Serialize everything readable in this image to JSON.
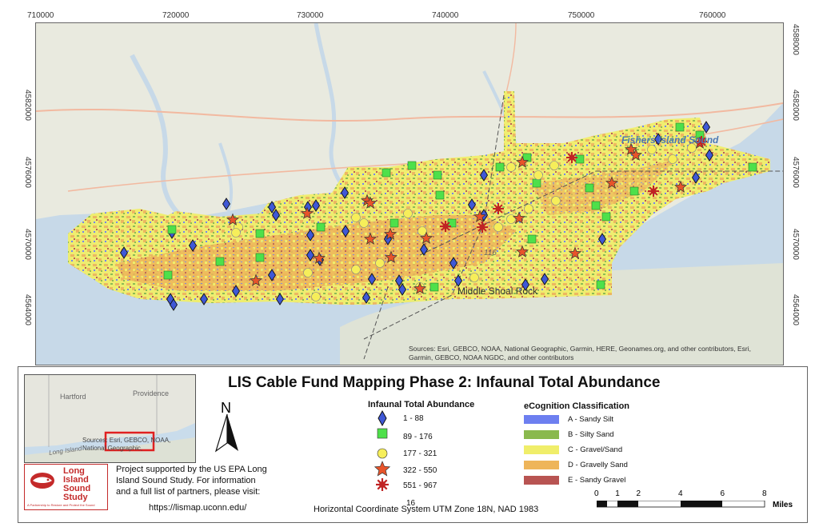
{
  "map": {
    "x_ticks": [
      "710000",
      "720000",
      "730000",
      "740000",
      "750000",
      "760000"
    ],
    "y_ticks_left": [
      "4582000",
      "4576000",
      "4570000",
      "4564000"
    ],
    "y_ticks_right": [
      "4588000",
      "4582000",
      "4576000",
      "4570000",
      "4564000"
    ],
    "labels": {
      "fishers_island_sound": "Fishers Island Sound",
      "middle_shoal_rock": "Middle Shoal Rock",
      "depth": "116"
    },
    "attribution": "Sources: Esri, GEBCO, NOAA, National Geographic, Garmin, HERE, Geonames.org, and other contributors, Esri, Garmin, GEBCO, NOAA NGDC, and other contributors",
    "colors": {
      "water": "#c7d9e8",
      "land": "#e9eadf",
      "sandy_silt": "#6d7ff0",
      "silty_sand": "#8ab94e",
      "gravel_sand": "#f0ee6a",
      "gravelly_sand": "#eeb55a",
      "sandy_gravel": "#b85452"
    }
  },
  "title": "LIS Cable Fund Mapping Phase 2: Infaunal Total Abundance",
  "inset": {
    "labels": {
      "hartford": "Hartford",
      "providence": "Providence",
      "long_island": "Long Island"
    },
    "attribution": "Sources: Esri, GEBCO, NOAA, National Geographic,"
  },
  "north_arrow": {
    "label": "N"
  },
  "abundance_legend": {
    "heading": "Infaunal Total Abundance",
    "classes": [
      "1 - 88",
      "89 - 176",
      "177 - 321",
      "322 - 550",
      "551 - 967"
    ]
  },
  "classification_legend": {
    "heading": "eCognition Classification",
    "classes": [
      "A - Sandy Silt",
      "B - Silty Sand",
      "C - Gravel/Sand",
      "D - Gravelly Sand",
      "E - Sandy Gravel"
    ]
  },
  "logo": {
    "line1": "Long",
    "line2": "Island",
    "line3": "Sound",
    "line4": "Study",
    "tagline": "A Partnership to Restore and Protect the Sound"
  },
  "credits": {
    "line1": "Project supported by the US EPA Long",
    "line2": "Island Sound Study. For information",
    "line3": "and a full list of partners, please visit:",
    "url": "https://lismap.uconn.edu/",
    "page": "16"
  },
  "coordinate_system": "Horizontal Coordinate System UTM Zone 18N, NAD 1983",
  "scale_bar": {
    "ticks": [
      "0",
      "1",
      "2",
      "4",
      "6",
      "8"
    ],
    "tick_values": [
      0,
      1,
      2,
      4,
      6,
      8
    ],
    "unit": "Miles"
  }
}
